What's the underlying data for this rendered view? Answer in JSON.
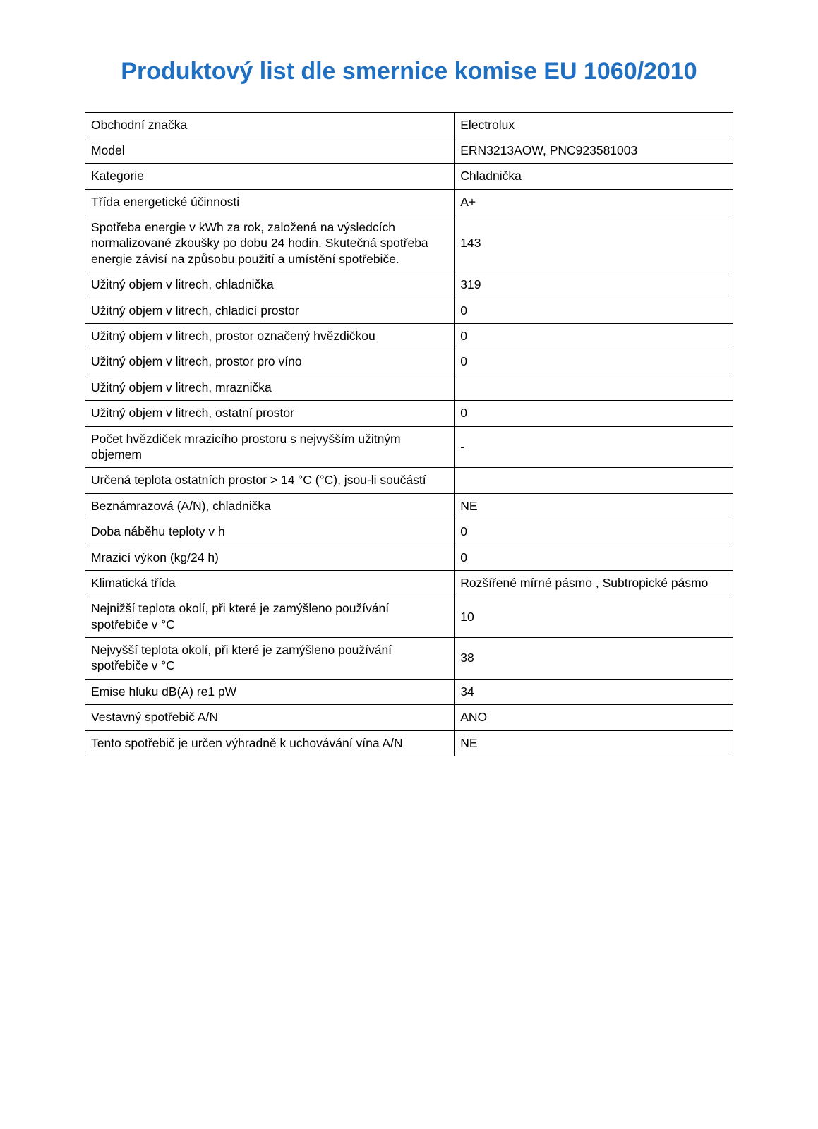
{
  "title": "Produktový list dle smernice komise EU 1060/2010",
  "title_color": "#1f6fc2",
  "title_fontsize": 34,
  "body_fontsize": 17.5,
  "border_color": "#000000",
  "background_color": "#ffffff",
  "table": {
    "label_col_width_pct": 57,
    "value_col_width_pct": 43,
    "rows": [
      {
        "label": "Obchodní značka",
        "value": "Electrolux"
      },
      {
        "label": "Model",
        "value": "ERN3213AOW, PNC923581003"
      },
      {
        "label": "Kategorie",
        "value": "Chladnička"
      },
      {
        "label": "Třída energetické účinnosti",
        "value": "A+"
      },
      {
        "label": "Spotřeba energie v kWh za rok, založená na výsledcích normalizované zkoušky po dobu 24 hodin. Skutečná spotřeba energie závisí na způsobu použití a umístění spotřebiče.",
        "value": "143"
      },
      {
        "label": "Užitný objem v litrech, chladnička",
        "value": "319"
      },
      {
        "label": "Užitný objem v litrech, chladicí prostor",
        "value": "0"
      },
      {
        "label": "Užitný objem v litrech, prostor označený hvězdičkou",
        "value": "0"
      },
      {
        "label": "Užitný objem v litrech, prostor pro víno",
        "value": "0"
      },
      {
        "label": "Užitný objem v litrech, mraznička",
        "value": ""
      },
      {
        "label": "Užitný objem v litrech, ostatní prostor",
        "value": "0"
      },
      {
        "label": "Počet hvězdiček mrazicího prostoru s nejvyšším užitným objemem",
        "value": "-"
      },
      {
        "label": "Určená teplota ostatních prostor > 14 °C (°C), jsou-li součástí",
        "value": ""
      },
      {
        "label": "Beznámrazová (A/N), chladnička",
        "value": "NE"
      },
      {
        "label": "Doba náběhu teploty v h",
        "value": "0"
      },
      {
        "label": "Mrazicí výkon (kg/24 h)",
        "value": "0"
      },
      {
        "label": "Klimatická třída",
        "value": "Rozšířené mírné pásmo , Subtropické pásmo"
      },
      {
        "label": "Nejnižší teplota okolí, při které je zamýšleno používání spotřebiče v °C",
        "value": "10"
      },
      {
        "label": "Nejvyšší teplota okolí, při které je zamýšleno používání spotřebiče v °C",
        "value": "38"
      },
      {
        "label": "Emise hluku dB(A) re1 pW",
        "value": "34"
      },
      {
        "label": "Vestavný spotřebič A/N",
        "value": "ANO"
      },
      {
        "label": "Tento spotřebič je určen výhradně k uchovávání vína A/N",
        "value": "NE"
      }
    ]
  }
}
